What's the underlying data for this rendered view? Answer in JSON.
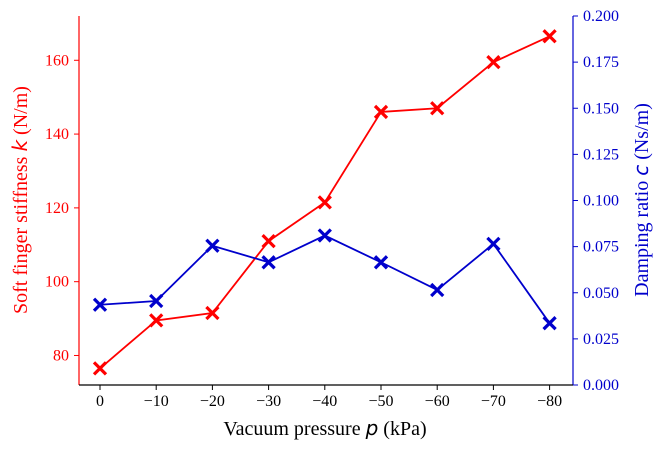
{
  "chart_data": {
    "type": "line",
    "title": "",
    "x": [
      "0",
      "−10",
      "−20",
      "−30",
      "−40",
      "−50",
      "−60",
      "−70",
      "−80"
    ],
    "x_values": [
      0,
      -10,
      -20,
      -30,
      -40,
      -50,
      -60,
      -70,
      -80
    ],
    "xlabel": {
      "prefix": "Vacuum pressure ",
      "symbol": "p",
      "suffix": " (kPa)"
    },
    "series": [
      {
        "axis": "left",
        "color": "#ff0000",
        "marker": "x",
        "values": [
          76.5,
          89.5,
          91.5,
          111.0,
          121.5,
          146.0,
          147.0,
          159.5,
          166.5
        ]
      },
      {
        "axis": "right",
        "color": "#0000cc",
        "marker": "x",
        "values": [
          0.0435,
          0.0455,
          0.0755,
          0.0665,
          0.081,
          0.0665,
          0.0515,
          0.0765,
          0.0335
        ]
      }
    ],
    "y_left": {
      "label": {
        "prefix": "Soft finger stiffness ",
        "symbol": "k",
        "suffix": " (N/m)"
      },
      "ylim": [
        72,
        172
      ],
      "ticks": [
        80,
        100,
        120,
        140,
        160
      ],
      "tick_labels": [
        "80",
        "100",
        "120",
        "140",
        "160"
      ],
      "color": "#ff0000"
    },
    "y_right": {
      "label": {
        "prefix": "Damping ratio ",
        "symbol": "c",
        "suffix": " (Ns/m)"
      },
      "ylim": [
        0.0,
        0.2
      ],
      "ticks": [
        0.0,
        0.025,
        0.05,
        0.075,
        0.1,
        0.125,
        0.15,
        0.175,
        0.2
      ],
      "tick_labels": [
        "0.000",
        "0.025",
        "0.050",
        "0.075",
        "0.100",
        "0.125",
        "0.150",
        "0.175",
        "0.200"
      ],
      "color": "#0000cc"
    },
    "grid": false,
    "legend": "none"
  }
}
